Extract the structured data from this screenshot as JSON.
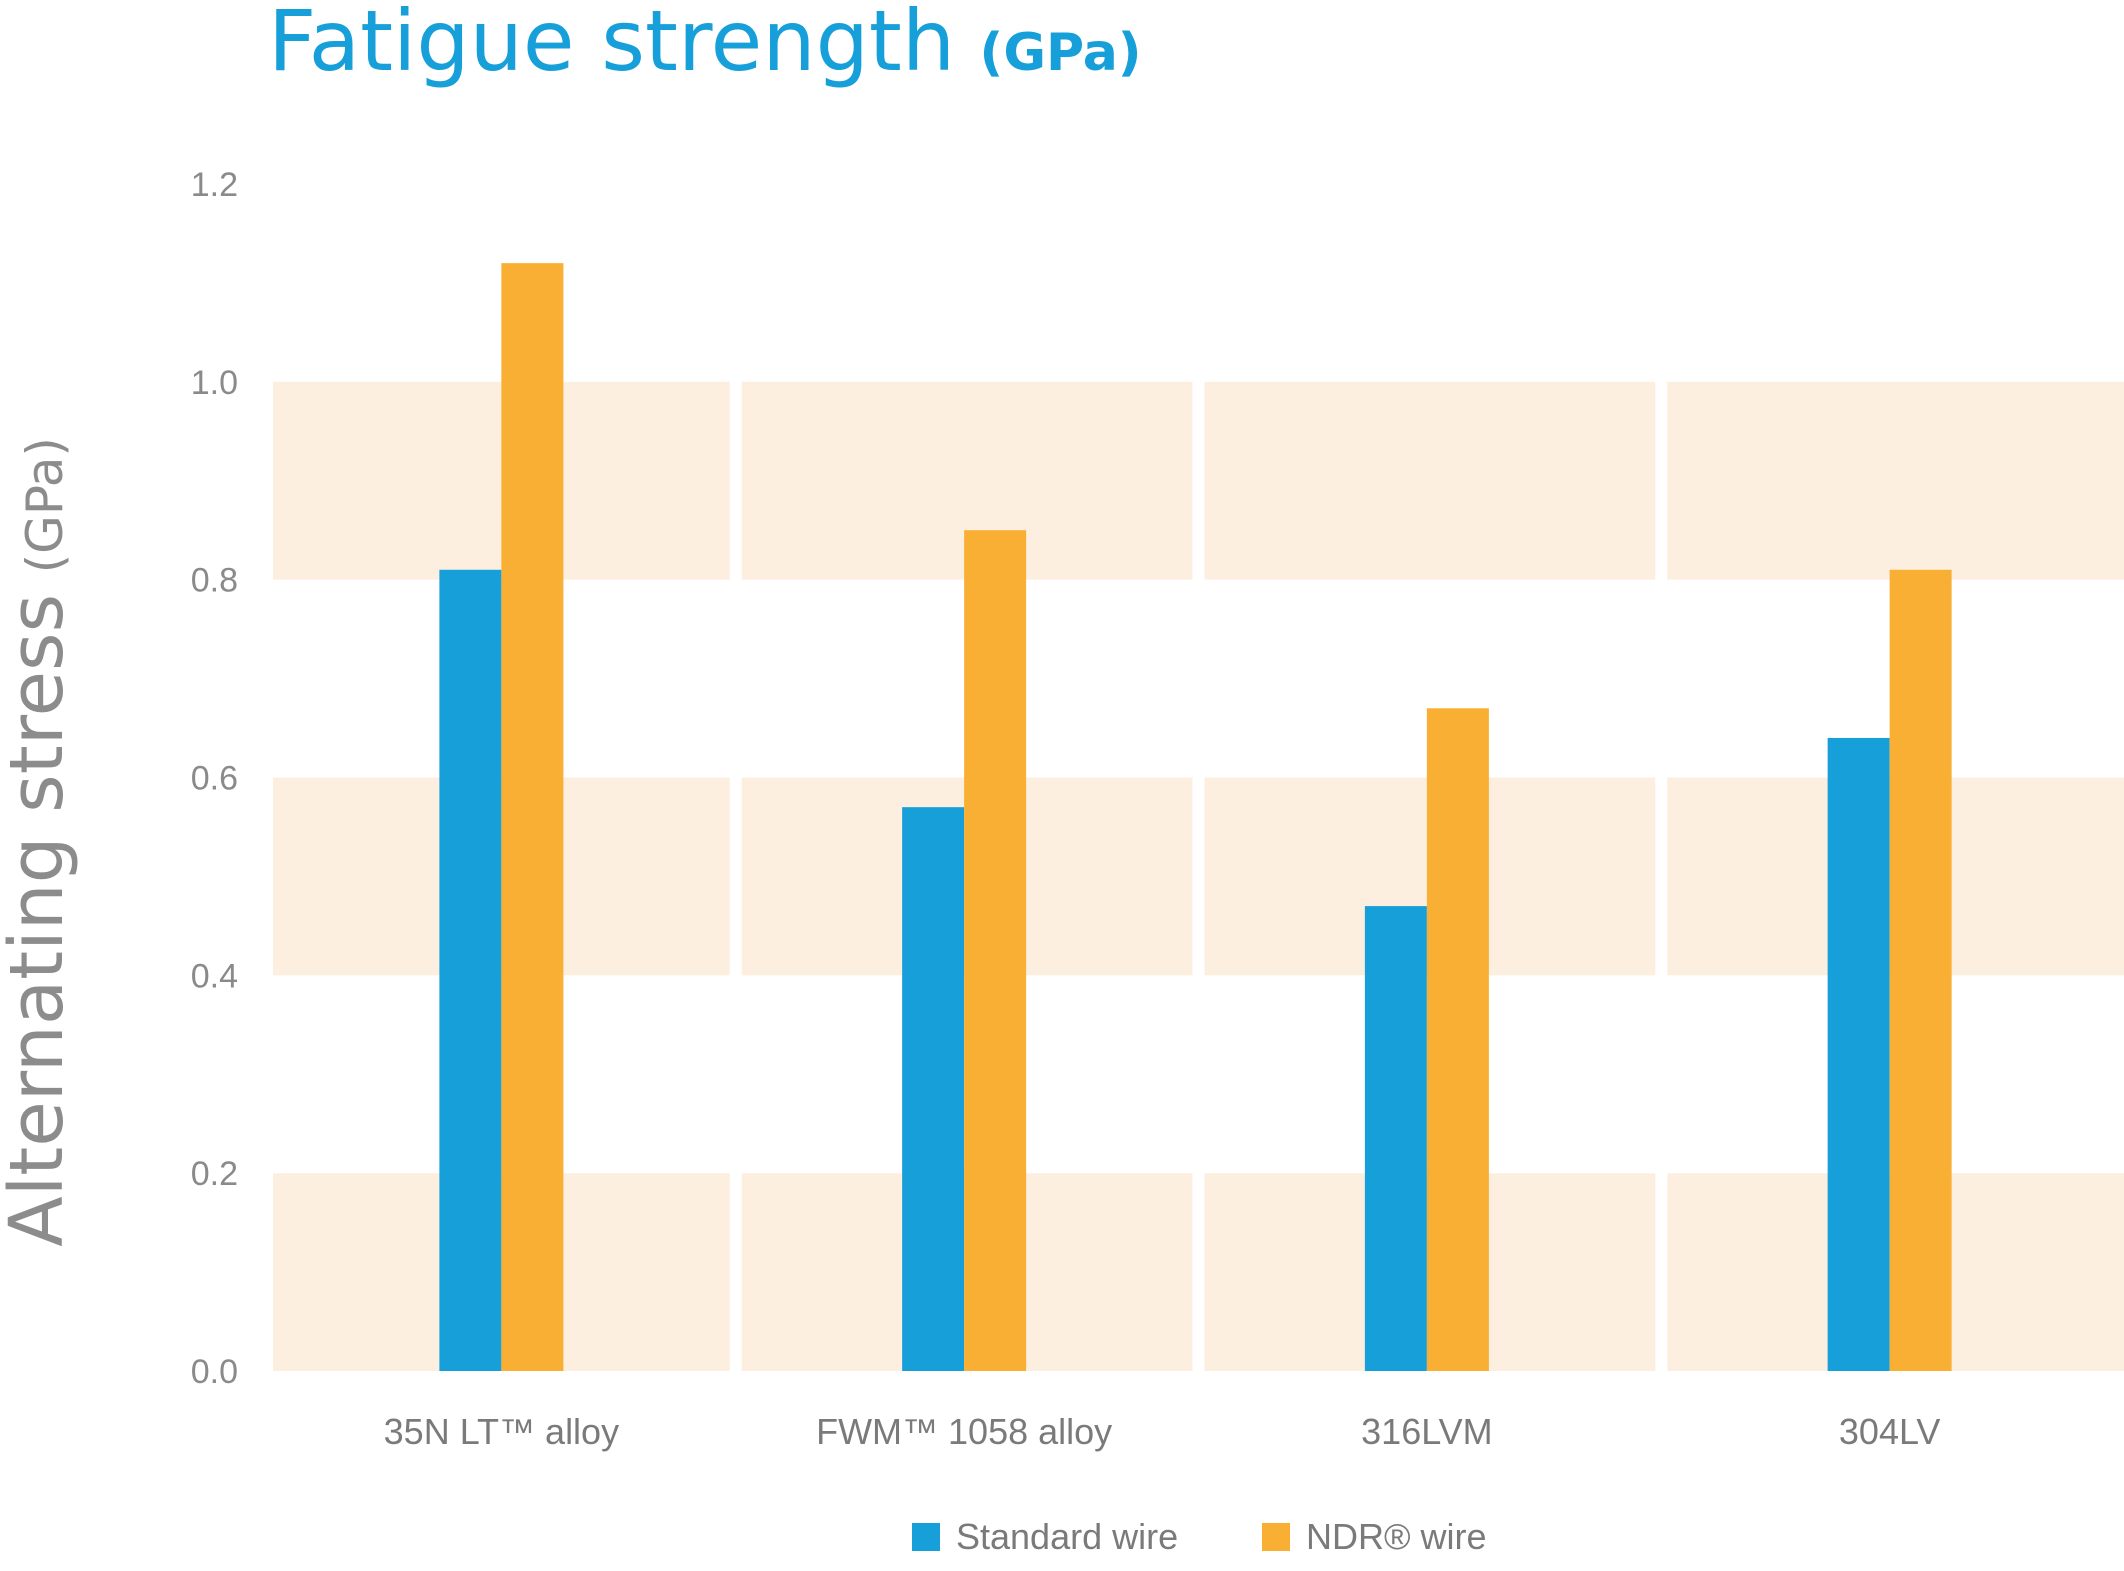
{
  "chart_data": {
    "type": "bar",
    "title": "Fatigue strength",
    "title_unit": "(GPa)",
    "ylabel": "Alternating stress",
    "ylabel_unit": "(GPa)",
    "ylim": [
      0,
      1.2
    ],
    "yticks": [
      "0.0",
      "0.2",
      "0.4",
      "0.6",
      "0.8",
      "1.0",
      "1.2"
    ],
    "categories": [
      "35N LT™ alloy",
      "FWM™ 1058 alloy",
      "316LVM",
      "304LV"
    ],
    "series": [
      {
        "name": "Standard wire",
        "color": "#179fd9",
        "values": [
          0.81,
          0.57,
          0.47,
          0.64
        ]
      },
      {
        "name": "NDR® wire",
        "color": "#f9af33",
        "values": [
          1.12,
          0.85,
          0.67,
          0.81
        ]
      }
    ],
    "band_color": "#fdefe0",
    "grid": false,
    "legend_position": "bottom"
  }
}
